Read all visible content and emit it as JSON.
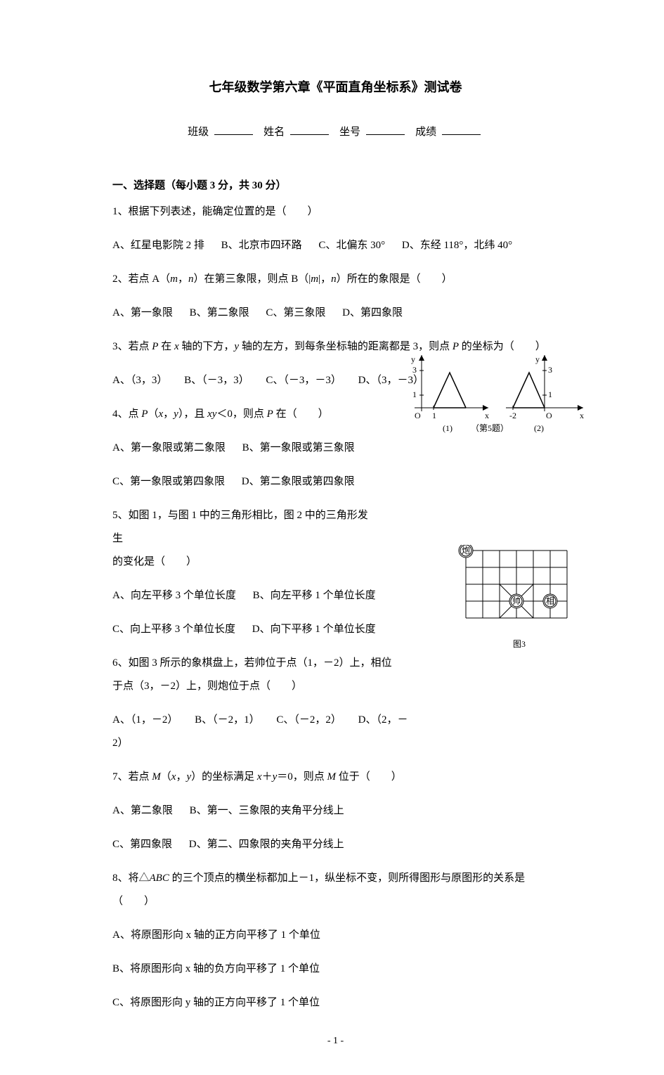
{
  "title": "七年级数学第六章《平面直角坐标系》测试卷",
  "header": {
    "class": "班级",
    "name": "姓名",
    "seat": "坐号",
    "score": "成绩"
  },
  "section1": "一、选择题（每小题 3 分，共 30 分）",
  "q1": {
    "stem": "1、根据下列表述，能确定位置的是（　　）",
    "A": "A、红星电影院 2 排",
    "B": "B、北京市四环路",
    "C": "C、北偏东 30°",
    "D": "D、东经 118°，北纬 40°"
  },
  "q2": {
    "stem_a": "2、若点 A（",
    "m": "m",
    "comma1": "，",
    "n": "n",
    "stem_b": "）在第三象限，则点 B（|",
    "m2": "m",
    "stem_c": "|，",
    "n2": "n",
    "stem_d": "）所在的象限是（　　）",
    "A": "A、第一象限",
    "B": "B、第二象限",
    "C": "C、第三象限",
    "D": "D、第四象限"
  },
  "q3": {
    "stem_a": "3、若点 ",
    "P": "P",
    "stem_b": " 在 ",
    "x": "x",
    "stem_c": " 轴的下方，",
    "y": "y",
    "stem_d": " 轴的左方，到每条坐标轴的距离都是 3，则点 ",
    "P2": "P",
    "stem_e": " 的坐标为（　　）",
    "A": "A、（3，3）",
    "B": "B、（－3，3）",
    "C": "C、（－3，－3）",
    "D": "D、（3，－3）"
  },
  "q4": {
    "stem_a": "4、点 ",
    "P": "P",
    "stem_b": "（",
    "x": "x",
    "stem_c": "，",
    "y": "y",
    "stem_d": "），且 ",
    "xy": "xy",
    "stem_e": "＜0，则点 ",
    "P2": "P",
    "stem_f": " 在（　　）",
    "A": "A、第一象限或第二象限",
    "B": "B、第一象限或第三象限",
    "C": "C、第一象限或第四象限",
    "D": "D、第二象限或第四象限"
  },
  "q5": {
    "stem": "5、如图 1，与图 1 中的三角形相比，图 2 中的三角形发生",
    "stem2": "的变化是（　　）",
    "A": "A、向左平移 3 个单位长度",
    "B": "B、向左平移 1 个单位长度",
    "C": "C、向上平移 3 个单位长度",
    "D": "D、向下平移 1 个单位长度",
    "fig_label": "（第5题）",
    "fig1_label": "(1)",
    "fig2_label": "(2)",
    "axis_y": "y",
    "axis_x": "x",
    "axis_o": "O",
    "tick3": "3",
    "tick1": "1",
    "tick_neg2": "-2",
    "chart": {
      "type": "line-diagram",
      "stroke": "#000000",
      "background": "#ffffff",
      "fig1_triangle": [
        [
          20,
          70
        ],
        [
          45,
          20
        ],
        [
          70,
          70
        ]
      ],
      "fig2_triangle": [
        [
          -30,
          70
        ],
        [
          -5,
          20
        ],
        [
          20,
          70
        ]
      ]
    }
  },
  "q6": {
    "stem_a": "6、如图 3 所示的象棋盘上，若",
    "piece1": "帅",
    "stem_b": "位于点（1，－2）上，",
    "piece2": "相",
    "stem_c": "位",
    "stem_d": "于点（3，－2）上，则",
    "piece3": "炮",
    "stem_e": "位于点（　　）",
    "A": "A、（1，－2）",
    "B": "B、（－2，1）",
    "C": "C、（－2，2）",
    "D": "D、（2，－2）",
    "fig_label": "图3",
    "chart": {
      "type": "grid-board",
      "rows": 4,
      "cols": 6,
      "cell": 24,
      "stroke": "#000000",
      "background": "#ffffff",
      "pieces": [
        {
          "label": "炮",
          "col": 0,
          "row": 0
        },
        {
          "label": "帅",
          "col": 3,
          "row": 3
        },
        {
          "label": "相",
          "col": 5,
          "row": 3
        }
      ]
    }
  },
  "q7": {
    "stem_a": "7、若点 ",
    "M": "M",
    "stem_b": "（",
    "x": "x",
    "stem_c": "，",
    "y": "y",
    "stem_d": "）的坐标满足 ",
    "x2": "x",
    "stem_e": "＋",
    "y2": "y",
    "stem_f": "＝0，则点 ",
    "M2": "M",
    "stem_g": " 位于（　　）",
    "A": "A、第二象限",
    "B": "B、第一、三象限的夹角平分线上",
    "C": "C、第四象限",
    "D": "D、第二、四象限的夹角平分线上"
  },
  "q8": {
    "stem_a": "8、将△",
    "ABC": "ABC",
    "stem_b": " 的三个顶点的横坐标都加上－1，纵坐标不变，则所得图形与原图形的关系是",
    "stem_c": "（　　）",
    "A": "A、将原图形向 x 轴的正方向平移了 1 个单位",
    "B": "B、将原图形向 x 轴的负方向平移了 1 个单位",
    "C": "C、将原图形向 y 轴的正方向平移了 1 个单位"
  },
  "pagenum": "- 1 -"
}
